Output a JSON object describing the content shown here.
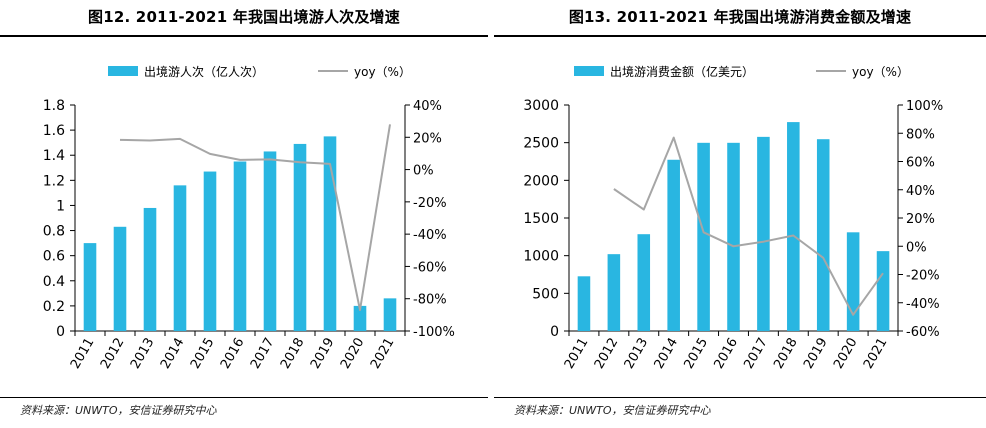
{
  "charts": [
    {
      "title": "图12. 2011-2021 年我国出境游人次及增速",
      "source": "资料来源：UNWTO，安信证券研究中心"
    },
    {
      "title": "图13. 2011-2021 年我国出境游消费金额及增速",
      "source": "资料来源：UNWTO，安信证券研究中心"
    }
  ],
  "colors": {
    "bar": "#29b6e1",
    "line": "#a6a6a6",
    "axis": "#000000"
  },
  "chart_data": [
    {
      "type": "bar",
      "title": "图12. 2011-2021 年我国出境游人次及增速",
      "categories": [
        "2011",
        "2012",
        "2013",
        "2014",
        "2015",
        "2016",
        "2017",
        "2018",
        "2019",
        "2020",
        "2021"
      ],
      "series": [
        {
          "name": "出境游人次（亿人次）",
          "type": "bar",
          "axis": "left",
          "values": [
            0.7,
            0.83,
            0.98,
            1.16,
            1.27,
            1.35,
            1.43,
            1.49,
            1.55,
            0.2,
            0.26
          ]
        },
        {
          "name": "yoy（%）",
          "type": "line",
          "axis": "right",
          "values": [
            null,
            18.4,
            18.0,
            19.0,
            9.7,
            6.0,
            6.3,
            4.5,
            3.5,
            -87.0,
            28.0
          ]
        }
      ],
      "y_left": {
        "min": 0,
        "max": 1.8,
        "step": 0.2,
        "ticks": [
          "0",
          "0.2",
          "0.4",
          "0.6",
          "0.8",
          "1",
          "1.2",
          "1.4",
          "1.6",
          "1.8"
        ]
      },
      "y_right": {
        "min": -100,
        "max": 40,
        "step": 20,
        "ticks": [
          "-100%",
          "-80%",
          "-60%",
          "-40%",
          "-20%",
          "0%",
          "20%",
          "40%"
        ]
      },
      "grid": false,
      "legend_position": "top-center"
    },
    {
      "type": "bar",
      "title": "图13. 2011-2021 年我国出境游消费金额及增速",
      "categories": [
        "2011",
        "2012",
        "2013",
        "2014",
        "2015",
        "2016",
        "2017",
        "2018",
        "2019",
        "2020",
        "2021"
      ],
      "series": [
        {
          "name": "出境游消费金额（亿美元）",
          "type": "bar",
          "axis": "left",
          "values": [
            726,
            1020,
            1285,
            2273,
            2498,
            2498,
            2577,
            2773,
            2546,
            1310,
            1060
          ]
        },
        {
          "name": "yoy（%）",
          "type": "line",
          "axis": "right",
          "values": [
            null,
            40.5,
            26.0,
            76.9,
            9.9,
            0.0,
            3.2,
            7.6,
            -8.2,
            -48.5,
            -19.1
          ]
        }
      ],
      "y_left": {
        "min": 0,
        "max": 3000,
        "step": 500,
        "ticks": [
          "0",
          "500",
          "1000",
          "1500",
          "2000",
          "2500",
          "3000"
        ]
      },
      "y_right": {
        "min": -60,
        "max": 100,
        "step": 20,
        "ticks": [
          "-60%",
          "-40%",
          "-20%",
          "0%",
          "20%",
          "40%",
          "60%",
          "80%",
          "100%"
        ]
      },
      "grid": false,
      "legend_position": "top-center"
    }
  ]
}
